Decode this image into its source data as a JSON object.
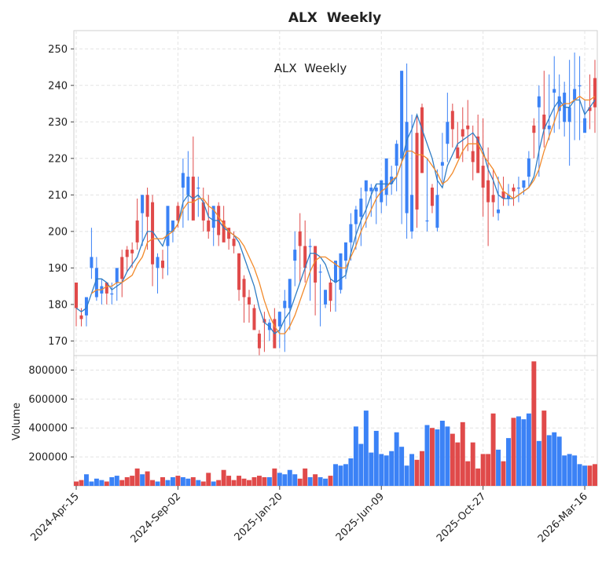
{
  "chart_data": {
    "type": "candlestick",
    "title": "ALX  Weekly",
    "annotation": "ALX  Weekly",
    "price_ylim": [
      166,
      255
    ],
    "price_yticks": [
      170,
      180,
      190,
      200,
      210,
      220,
      230,
      240,
      250
    ],
    "volume_ylabel": "Volume",
    "volume_ylim": [
      0,
      900000
    ],
    "volume_yticks": [
      200000,
      400000,
      600000,
      800000
    ],
    "grid": true,
    "x_tick_labels": [
      {
        "index": 0,
        "label": "2024-Apr-15"
      },
      {
        "index": 20,
        "label": "2024-Sep-02"
      },
      {
        "index": 40,
        "label": "2025-Jan-20"
      },
      {
        "index": 60,
        "label": "2025-Jun-09"
      },
      {
        "index": 80,
        "label": "2025-Oct-27"
      },
      {
        "index": 100,
        "label": "2026-Mar-16"
      }
    ],
    "colors": {
      "up": "#3b82f6",
      "down": "#e04a4a",
      "ma_fast": "#2f7dc4",
      "ma_slow": "#f28a2b"
    },
    "series": [
      {
        "name": "Open",
        "values": [
          186,
          177,
          177,
          190,
          182,
          183,
          186,
          183,
          186,
          193,
          195,
          195,
          203,
          205,
          210,
          208,
          190,
          192,
          196,
          200,
          207,
          212,
          210,
          215,
          212,
          208,
          203,
          201,
          207,
          203,
          201,
          198,
          194,
          187,
          182,
          179,
          172,
          176,
          173,
          176,
          174,
          179,
          179,
          192,
          200,
          196,
          196,
          196,
          189,
          180,
          186,
          186,
          184,
          192,
          197,
          202,
          204,
          211,
          211,
          211,
          208,
          210,
          213,
          218,
          220,
          205,
          200,
          227,
          234,
          203,
          212,
          201,
          218,
          224,
          233,
          223,
          228,
          229,
          222,
          226,
          218,
          214,
          210,
          205,
          211,
          209,
          212,
          212,
          212,
          215,
          229,
          234,
          232,
          228,
          238,
          233,
          230,
          230,
          236,
          240,
          227,
          234,
          242
        ]
      },
      {
        "name": "High",
        "values": [
          186,
          179,
          179,
          201,
          193,
          187,
          186,
          186,
          186,
          195,
          196,
          197,
          209,
          210,
          212,
          210,
          194,
          195,
          200,
          201,
          208,
          220,
          222,
          226,
          215,
          212,
          210,
          205,
          208,
          207,
          201,
          200,
          194,
          188,
          184,
          180,
          173,
          178,
          176,
          179,
          178,
          184,
          184,
          200,
          205,
          203,
          198,
          196,
          191,
          184,
          187,
          188,
          190,
          193,
          205,
          207,
          212,
          213,
          213,
          213,
          212,
          216,
          218,
          225,
          243,
          246,
          232,
          232,
          235,
          220,
          213,
          217,
          227,
          238,
          235,
          230,
          234,
          236,
          229,
          232,
          231,
          223,
          217,
          215,
          215,
          213,
          213,
          215,
          213,
          222,
          231,
          240,
          244,
          243,
          248,
          243,
          241,
          247,
          249,
          248,
          236,
          243,
          247
        ]
      },
      {
        "name": "Low",
        "values": [
          174,
          174,
          174,
          187,
          181,
          180,
          180,
          180,
          181,
          182,
          189,
          190,
          195,
          196,
          195,
          185,
          183,
          187,
          188,
          197,
          201,
          201,
          203,
          208,
          204,
          200,
          198,
          196,
          196,
          199,
          195,
          194,
          181,
          175,
          175,
          174,
          166,
          167,
          170,
          171,
          168,
          167,
          173,
          185,
          186,
          186,
          181,
          177,
          174,
          179,
          178,
          178,
          183,
          187,
          192,
          195,
          196,
          201,
          204,
          202,
          205,
          207,
          210,
          211,
          202,
          198,
          198,
          201,
          216,
          200,
          205,
          200,
          213,
          219,
          223,
          220,
          219,
          222,
          214,
          217,
          204,
          196,
          204,
          203,
          207,
          207,
          207,
          208,
          210,
          212,
          220,
          215,
          223,
          225,
          227,
          228,
          226,
          218,
          225,
          225,
          229,
          228,
          227
        ]
      },
      {
        "name": "Close",
        "values": [
          179,
          176,
          182,
          193,
          190,
          185,
          183,
          183,
          190,
          187,
          193,
          194,
          197,
          210,
          204,
          191,
          193,
          190,
          207,
          203,
          203,
          216,
          215,
          203,
          212,
          203,
          200,
          207,
          199,
          197,
          198,
          196,
          184,
          182,
          180,
          173,
          168,
          175,
          175,
          168,
          178,
          181,
          187,
          195,
          196,
          190,
          196,
          186,
          189,
          184,
          181,
          192,
          194,
          197,
          202,
          206,
          209,
          214,
          212,
          212,
          214,
          220,
          215,
          224,
          244,
          230,
          210,
          206,
          216,
          203,
          207,
          210,
          219,
          230,
          228,
          220,
          226,
          228,
          219,
          216,
          212,
          208,
          208,
          206,
          209,
          210,
          211,
          212,
          214,
          220,
          227,
          237,
          228,
          229,
          239,
          237,
          238,
          234,
          239,
          240,
          231,
          233,
          234
        ]
      },
      {
        "name": "Volume",
        "values": [
          30000,
          40000,
          80000,
          30000,
          50000,
          40000,
          30000,
          60000,
          70000,
          40000,
          60000,
          70000,
          120000,
          80000,
          100000,
          40000,
          30000,
          60000,
          40000,
          60000,
          70000,
          60000,
          50000,
          60000,
          40000,
          30000,
          90000,
          30000,
          40000,
          110000,
          70000,
          40000,
          70000,
          50000,
          40000,
          60000,
          70000,
          60000,
          60000,
          120000,
          90000,
          80000,
          110000,
          80000,
          50000,
          120000,
          60000,
          80000,
          60000,
          50000,
          70000,
          150000,
          140000,
          150000,
          190000,
          410000,
          290000,
          520000,
          230000,
          380000,
          220000,
          210000,
          240000,
          370000,
          270000,
          140000,
          220000,
          180000,
          240000,
          420000,
          400000,
          390000,
          450000,
          410000,
          360000,
          300000,
          440000,
          170000,
          300000,
          120000,
          220000,
          220000,
          500000,
          250000,
          170000,
          330000,
          470000,
          480000,
          460000,
          500000,
          860000,
          310000,
          520000,
          350000,
          370000,
          340000,
          210000,
          220000,
          210000,
          150000,
          140000,
          140000,
          150000
        ]
      },
      {
        "name": "MA fast",
        "values": [
          179,
          178,
          179,
          183,
          187,
          187,
          186,
          184,
          185,
          186,
          189,
          191,
          193,
          197,
          200,
          200,
          198,
          196,
          200,
          200,
          202,
          208,
          210,
          209,
          210,
          208,
          204,
          203,
          203,
          201,
          200,
          199,
          197,
          193,
          189,
          185,
          179,
          175,
          174,
          172,
          173,
          176,
          178,
          182,
          186,
          190,
          194,
          194,
          193,
          191,
          187,
          186,
          187,
          188,
          194,
          199,
          203,
          206,
          210,
          213,
          213,
          213,
          213,
          215,
          219,
          225,
          228,
          232,
          228,
          224,
          220,
          214,
          212,
          218,
          221,
          224,
          225,
          226,
          227,
          225,
          222,
          217,
          214,
          210,
          209,
          209,
          209,
          210,
          211,
          212,
          215,
          222,
          228,
          231,
          234,
          236,
          234,
          234,
          236,
          236,
          232,
          234,
          236
        ]
      },
      {
        "name": "MA slow",
        "values": [
          null,
          null,
          null,
          183,
          184,
          184,
          185,
          185,
          186,
          186,
          187,
          188,
          191,
          193,
          197,
          198,
          198,
          198,
          199,
          200,
          202,
          206,
          208,
          208,
          209,
          209,
          207,
          206,
          204,
          202,
          200,
          199,
          198,
          196,
          193,
          190,
          186,
          181,
          177,
          174,
          172,
          172,
          174,
          177,
          181,
          185,
          189,
          192,
          193,
          193,
          192,
          191,
          190,
          190,
          193,
          196,
          200,
          203,
          206,
          209,
          211,
          212,
          214,
          215,
          219,
          222,
          222,
          221,
          221,
          220,
          218,
          216,
          213,
          214,
          216,
          219,
          222,
          224,
          224,
          224,
          221,
          219,
          217,
          214,
          211,
          210,
          209,
          210,
          211,
          212,
          214,
          217,
          222,
          226,
          230,
          234,
          235,
          235,
          236,
          237,
          236,
          236,
          237
        ]
      }
    ]
  }
}
